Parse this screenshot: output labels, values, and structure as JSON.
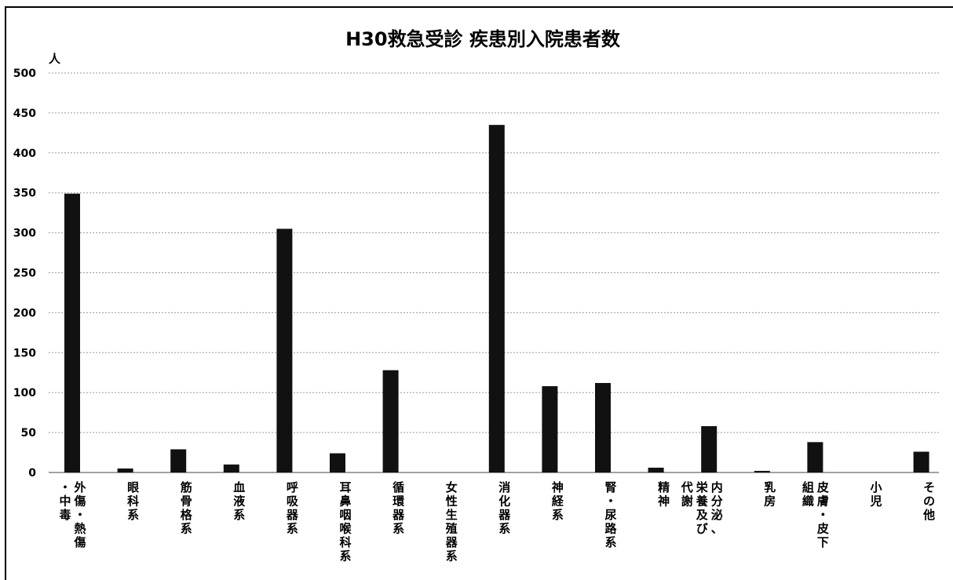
{
  "chart_data": {
    "type": "bar",
    "title": "H30救急受診 疾患別入院患者数",
    "ylabel": "人",
    "xlabel": "",
    "ylim": [
      0,
      500
    ],
    "yticks": [
      0,
      50,
      100,
      150,
      200,
      250,
      300,
      350,
      400,
      450,
      500
    ],
    "grid": true,
    "legend": "none",
    "bar_color": "#111111",
    "categories": [
      "外傷・熱傷・中毒",
      "眼科系",
      "筋骨格系",
      "血液系",
      "呼吸器系",
      "耳鼻咽喉科系",
      "循環器系",
      "女性生殖器系",
      "消化器系",
      "神経系",
      "腎・尿路系",
      "精神",
      "内分泌、栄養及び代謝",
      "乳房",
      "皮膚・皮下組織",
      "小児",
      "その他"
    ],
    "category_label_columns": [
      [
        "外傷・熱傷",
        "・中毒"
      ],
      [
        "眼科系"
      ],
      [
        "筋骨格系"
      ],
      [
        "血液系"
      ],
      [
        "呼吸器系"
      ],
      [
        "耳鼻咽喉科系"
      ],
      [
        "循環器系"
      ],
      [
        "女性生殖器系"
      ],
      [
        "消化器系"
      ],
      [
        "神経系"
      ],
      [
        "腎・尿路系"
      ],
      [
        "精神"
      ],
      [
        "内分泌、",
        "栄養及び",
        "代謝"
      ],
      [
        "乳房"
      ],
      [
        "皮膚・皮下",
        "組織"
      ],
      [
        "小児"
      ],
      [
        "その他"
      ]
    ],
    "values": [
      349,
      5,
      29,
      10,
      305,
      24,
      128,
      0,
      435,
      108,
      112,
      6,
      58,
      2,
      38,
      0,
      26
    ]
  }
}
